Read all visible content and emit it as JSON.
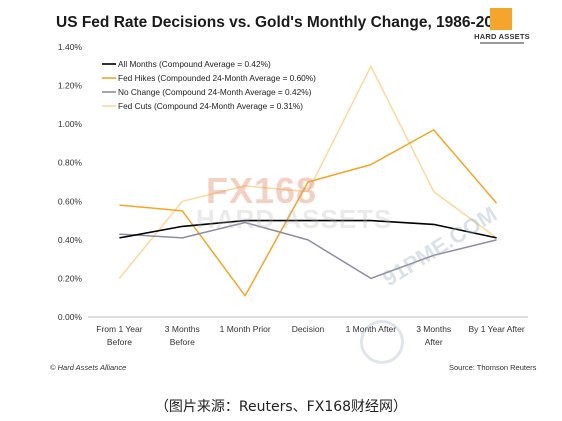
{
  "header": {
    "title": "US Fed Rate Decisions vs. Gold's Monthly Change, 1986-2016",
    "logo_text": "HARD ASSETS"
  },
  "footer": {
    "credit_left": "© Hard Assets Alliance",
    "credit_right": "Source: Thomson Reuters",
    "caption": "（图片来源：Reuters、FX168财经网）"
  },
  "watermarks": {
    "fx168": "FX168",
    "hard_assets": "HARD ASSETS",
    "site": "91PME.COM"
  },
  "chart_data": {
    "type": "line",
    "categories": [
      "From 1 Year Before",
      "3 Months Before",
      "1 Month Prior",
      "Decision",
      "1 Month After",
      "3 Months After",
      "By 1 Year After"
    ],
    "category_lines": [
      [
        "From 1 Year",
        "Before"
      ],
      [
        "3 Months",
        "Before"
      ],
      [
        "1 Month Prior"
      ],
      [
        "Decision"
      ],
      [
        "1 Month After"
      ],
      [
        "3 Months",
        "After"
      ],
      [
        "By 1 Year After"
      ]
    ],
    "ylim": [
      0,
      1.4
    ],
    "yticks": [
      0,
      0.2,
      0.4,
      0.6,
      0.8,
      1.0,
      1.2,
      1.4
    ],
    "ytick_labels": [
      "0.00%",
      "0.20%",
      "0.40%",
      "0.60%",
      "0.80%",
      "1.00%",
      "1.20%",
      "1.40%"
    ],
    "grid": false,
    "legend_position": "top-left",
    "series": [
      {
        "name": "All Months (Compound Average = 0.42%)",
        "color": "#000000",
        "values": [
          0.41,
          0.47,
          0.5,
          0.5,
          0.5,
          0.48,
          0.41
        ]
      },
      {
        "name": "Fed Hikes (Compounded 24-Month Average = 0.60%)",
        "color": "#f5a623",
        "values": [
          0.58,
          0.55,
          0.11,
          0.7,
          0.79,
          0.97,
          0.59
        ]
      },
      {
        "name": "No Change (Compound 24-Month Average = 0.42%)",
        "color": "#8e8ba3",
        "values": [
          0.43,
          0.41,
          0.49,
          0.4,
          0.2,
          0.32,
          0.4
        ]
      },
      {
        "name": "Fed Cuts (Compound 24-Month Average = 0.31%)",
        "color": "#fcd89a",
        "values": [
          0.2,
          0.6,
          0.68,
          0.65,
          1.3,
          0.65,
          0.41
        ]
      }
    ]
  }
}
